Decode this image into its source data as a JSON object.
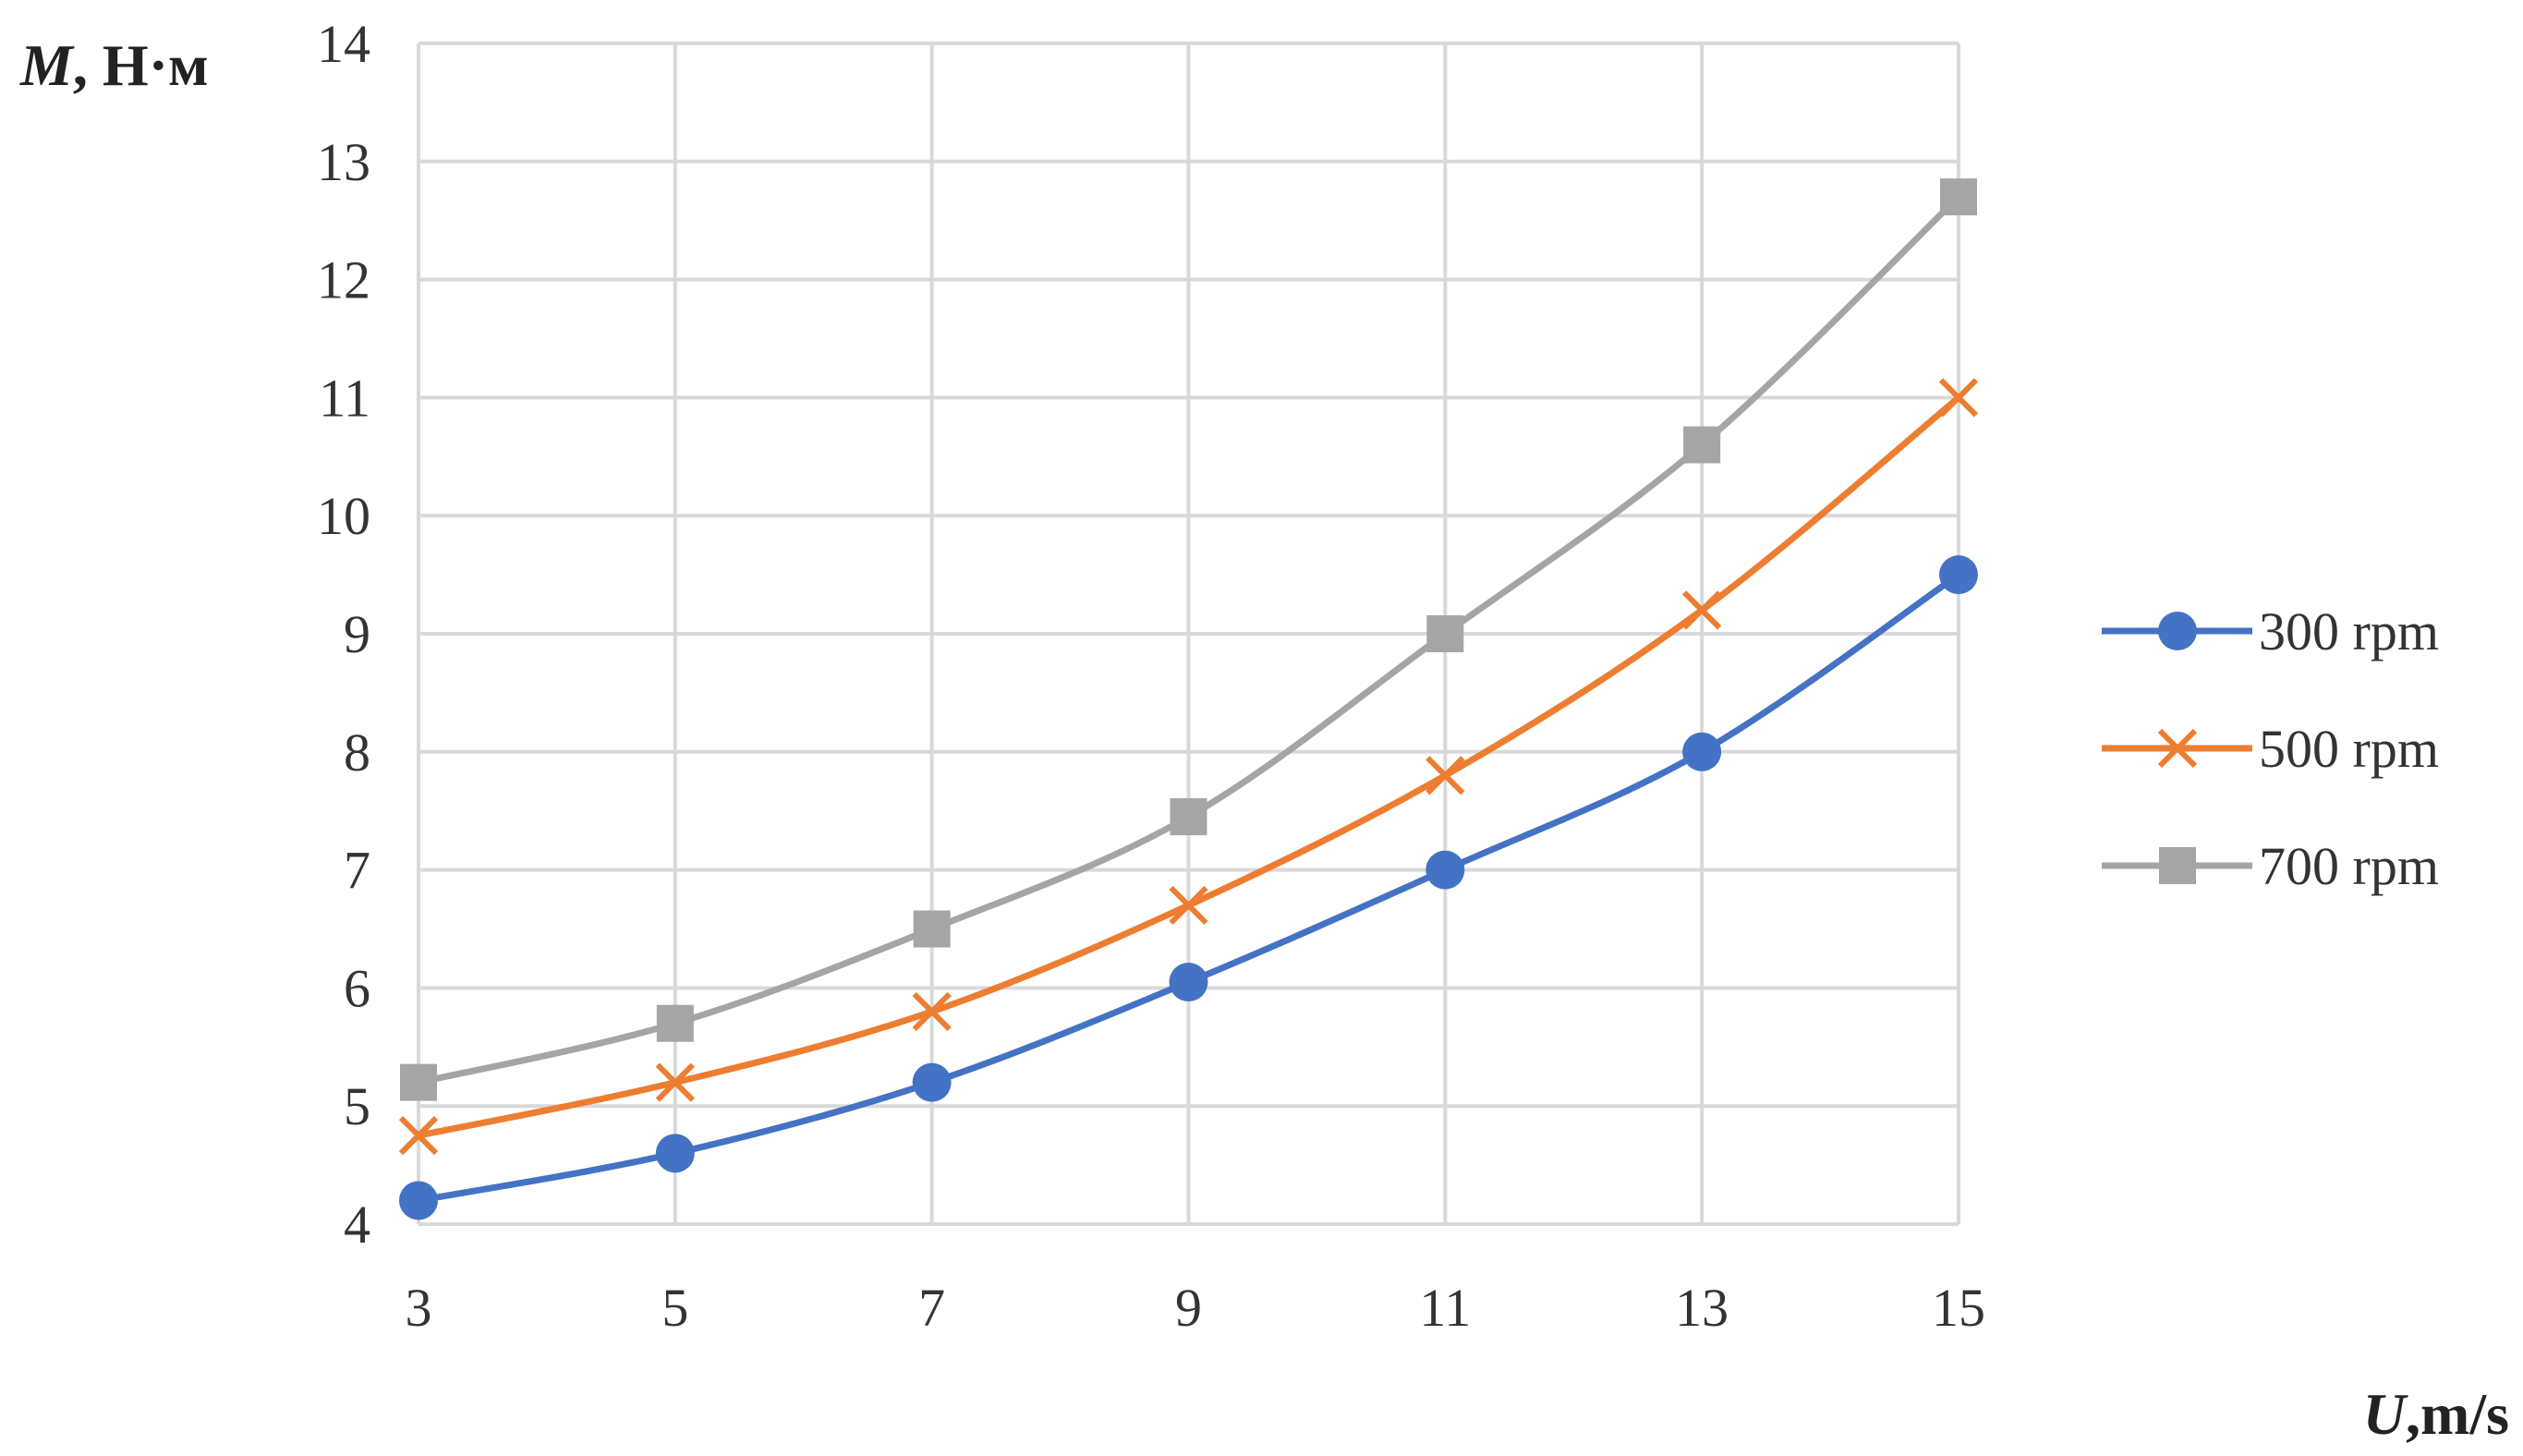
{
  "chart_data": {
    "type": "line",
    "title": "",
    "xlabel": {
      "var": "U",
      "unit": ",m/s"
    },
    "ylabel": {
      "var": "M",
      "unit": ", Н·м"
    },
    "x": [
      3,
      5,
      7,
      9,
      11,
      13,
      15
    ],
    "xticks": [
      3,
      5,
      7,
      9,
      11,
      13,
      15
    ],
    "yticks": [
      4,
      5,
      6,
      7,
      8,
      9,
      10,
      11,
      12,
      13,
      14
    ],
    "xlim": [
      3,
      15
    ],
    "ylim": [
      4,
      14
    ],
    "grid": true,
    "smooth": true,
    "legend_position": "right",
    "series": [
      {
        "name": "300 rpm",
        "marker": "circle",
        "color": "#4472C4",
        "values": [
          4.2,
          4.6,
          5.2,
          6.05,
          7.0,
          8.0,
          9.5
        ]
      },
      {
        "name": "500 rpm",
        "marker": "x",
        "color": "#ED7D31",
        "values": [
          4.75,
          5.2,
          5.8,
          6.7,
          7.8,
          9.2,
          11.0
        ]
      },
      {
        "name": "700 rpm",
        "marker": "square",
        "color": "#A5A5A5",
        "values": [
          5.2,
          5.7,
          6.5,
          7.45,
          9.0,
          10.6,
          12.7
        ]
      }
    ]
  }
}
